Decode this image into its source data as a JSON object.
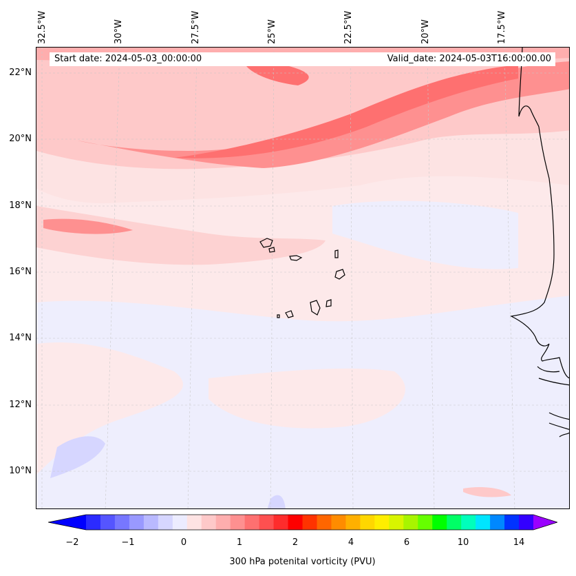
{
  "banner": {
    "start_date": "Start date: 2024-05-03_00:00:00",
    "valid_date": "Valid_date: 2024-05-03T16:00:00.00"
  },
  "lon_labels": [
    "32.5°W",
    "30°W",
    "27.5°W",
    "25°W",
    "22.5°W",
    "20°W",
    "17.5°W"
  ],
  "lat_labels": [
    "22°N",
    "20°N",
    "18°N",
    "16°N",
    "14°N",
    "12°N",
    "10°N"
  ],
  "colorbar": {
    "ticks": [
      "−2",
      "−1",
      "0",
      "1",
      "2",
      "4",
      "6",
      "10",
      "14"
    ],
    "label": "300 hPa potenital vorticity (PVU)",
    "colors": [
      "#0000ff",
      "#2b2bff",
      "#5555ff",
      "#7777ff",
      "#9999ff",
      "#b9b9ff",
      "#d6d6ff",
      "#ececff",
      "#fee3e3",
      "#fec9c9",
      "#feaeae",
      "#fe9090",
      "#fe7070",
      "#fe5050",
      "#fe2c2c",
      "#fe0000",
      "#ff3300",
      "#ff6600",
      "#ff8c00",
      "#ffb000",
      "#ffd700",
      "#ffee00",
      "#d8f500",
      "#a8f500",
      "#66ff00",
      "#00ff00",
      "#00ff66",
      "#00ffbb",
      "#00e5ff",
      "#0088ff",
      "#0033ff",
      "#3300ff",
      "#9900ff"
    ]
  }
}
